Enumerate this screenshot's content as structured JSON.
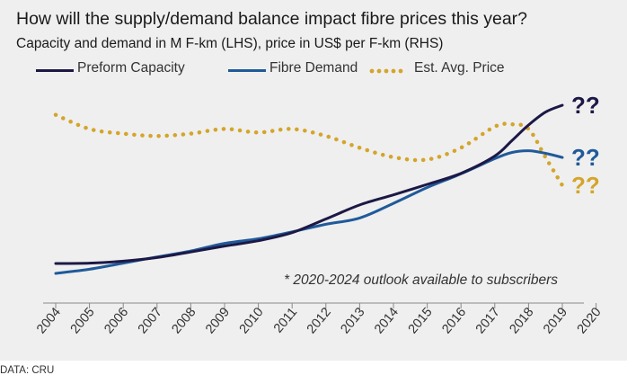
{
  "chart_data": {
    "type": "line",
    "title": "How will the supply/demand balance impact fibre prices this year?",
    "subtitle": "Capacity and demand in M F-km (LHS), price in US$ per F-km (RHS)",
    "xlabel": "",
    "ylabel": "",
    "categories": [
      "2004",
      "2005",
      "2006",
      "2007",
      "2008",
      "2009",
      "2010",
      "2011",
      "2012",
      "2013",
      "2014",
      "2015",
      "2016",
      "2017",
      "2018",
      "2019",
      "2020"
    ],
    "series": [
      {
        "name": "Preform Capacity",
        "color": "#1c1846",
        "style": "solid",
        "axis": "left",
        "x": [
          2004,
          2005,
          2006,
          2007,
          2008,
          2009,
          2010,
          2011,
          2012,
          2013,
          2014,
          2015,
          2016,
          2017,
          2017.5,
          2018,
          2018.5,
          2019
        ],
        "values": [
          0,
          0.2,
          1.2,
          3.0,
          5.8,
          8.8,
          11.5,
          15.6,
          22.5,
          29.6,
          34.7,
          40.0,
          45.6,
          54.3,
          62.0,
          70.0,
          76.5,
          80.0
        ],
        "end_label": "??"
      },
      {
        "name": "Fibre Demand",
        "color": "#1f5a9a",
        "style": "solid",
        "axis": "left",
        "x": [
          2004,
          2005,
          2006,
          2007,
          2008,
          2009,
          2010,
          2011,
          2012,
          2013,
          2014,
          2015,
          2016,
          2017,
          2017.5,
          2018,
          2018.5,
          2019
        ],
        "values": [
          -5.0,
          -2.9,
          0.2,
          3.3,
          6.3,
          10.2,
          12.5,
          16.0,
          19.8,
          23.0,
          30.4,
          38.4,
          45.3,
          53.0,
          56.1,
          57.0,
          55.7,
          53.6
        ],
        "end_label": "??"
      },
      {
        "name": "Est. Avg. Price",
        "color": "#d4a52a",
        "style": "dotted",
        "axis": "right",
        "x": [
          2004,
          2005,
          2006,
          2007,
          2008,
          2009,
          2010,
          2011,
          2012,
          2013,
          2014,
          2015,
          2016,
          2017,
          2017.5,
          2018,
          2018.5,
          2019
        ],
        "values": [
          100,
          88,
          84,
          82,
          84,
          88,
          85,
          88,
          82,
          72,
          64,
          62,
          72,
          90,
          92,
          88,
          64,
          40
        ],
        "end_label": "??"
      }
    ],
    "xlim": [
      2004,
      2020
    ],
    "ylim": [
      -20,
      90
    ],
    "y2lim": [
      -60,
      125
    ],
    "grid": false,
    "y_axis_labels_shown": false,
    "legend_position": "top",
    "annotations": [
      "* 2020-2024 outlook available to subscribers"
    ]
  },
  "legend": {
    "items": [
      "Preform Capacity",
      "Fibre Demand",
      "Est. Avg. Price"
    ]
  },
  "note": "* 2020-2024 outlook available to subscribers",
  "source": "DATA: CRU",
  "colors": {
    "background": "#efefef",
    "capacity": "#1c1846",
    "demand": "#1f5a9a",
    "price": "#d4a52a"
  }
}
